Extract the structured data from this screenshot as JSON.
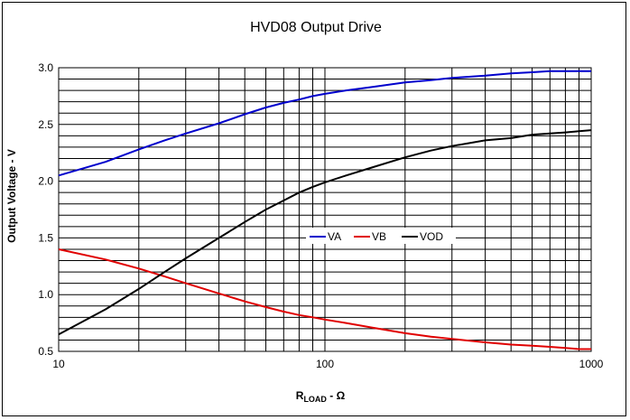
{
  "chart_data": {
    "type": "line",
    "title": "HVD08 Output Drive",
    "xlabel_main": "R",
    "xlabel_sub": "LOAD",
    "xlabel_tail": " - Ω",
    "ylabel": "Output Voltage - V",
    "xscale": "log",
    "xlim": [
      10,
      1000
    ],
    "ylim": [
      0.5,
      3.0
    ],
    "grid": true,
    "legend_placement": "center",
    "x_ticks": [
      "10",
      "100",
      "1000"
    ],
    "y_ticks": [
      "0.5",
      "1.0",
      "1.5",
      "2.0",
      "2.5",
      "3.0"
    ],
    "x": [
      10,
      15,
      20,
      25,
      30,
      40,
      50,
      60,
      70,
      80,
      90,
      100,
      120,
      150,
      200,
      250,
      300,
      400,
      500,
      600,
      700,
      800,
      900,
      1000
    ],
    "series": [
      {
        "name": "VA",
        "color": "#0000cc",
        "values": [
          2.05,
          2.17,
          2.28,
          2.36,
          2.42,
          2.51,
          2.59,
          2.65,
          2.69,
          2.72,
          2.75,
          2.77,
          2.8,
          2.83,
          2.87,
          2.89,
          2.91,
          2.93,
          2.95,
          2.96,
          2.97,
          2.97,
          2.97,
          2.97
        ]
      },
      {
        "name": "VB",
        "color": "#e00000",
        "values": [
          1.4,
          1.31,
          1.23,
          1.16,
          1.1,
          1.01,
          0.94,
          0.89,
          0.85,
          0.82,
          0.8,
          0.78,
          0.75,
          0.71,
          0.66,
          0.63,
          0.61,
          0.58,
          0.56,
          0.55,
          0.54,
          0.53,
          0.52,
          0.52
        ]
      },
      {
        "name": "VOD",
        "color": "#000000",
        "values": [
          0.65,
          0.87,
          1.05,
          1.2,
          1.32,
          1.5,
          1.64,
          1.75,
          1.83,
          1.9,
          1.95,
          1.99,
          2.05,
          2.12,
          2.21,
          2.27,
          2.31,
          2.36,
          2.38,
          2.41,
          2.42,
          2.43,
          2.44,
          2.45
        ]
      }
    ]
  }
}
